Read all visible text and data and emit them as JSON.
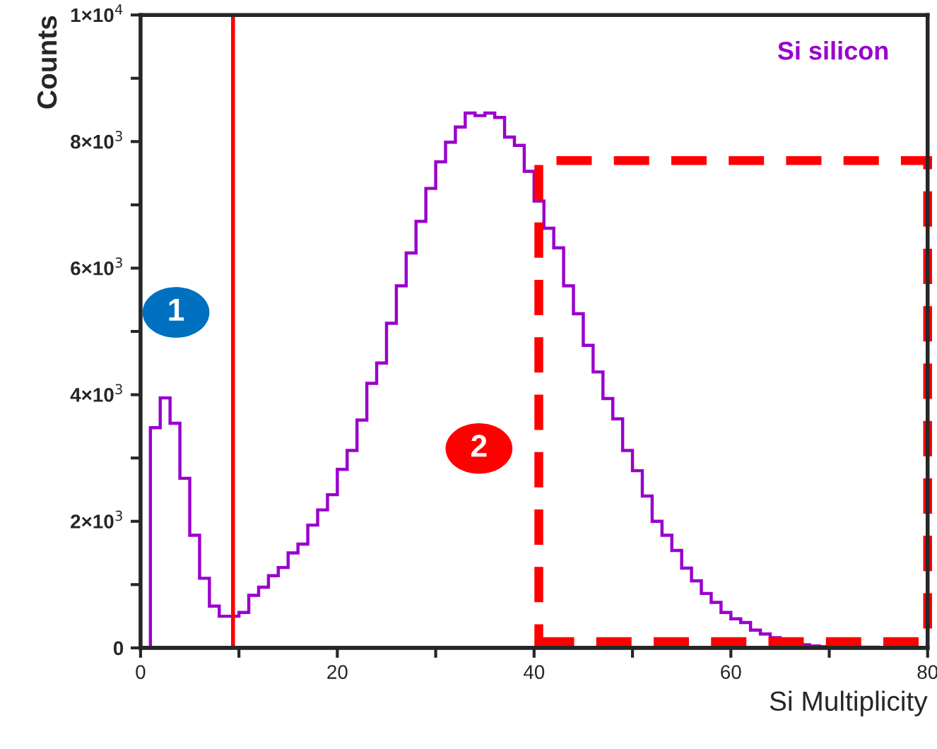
{
  "chart_data": {
    "type": "histogram",
    "xlabel": "Si Multiplicity",
    "ylabel": "Counts",
    "bins": [
      1,
      2,
      3,
      4,
      5,
      6,
      7,
      8,
      9,
      10,
      11,
      12,
      13,
      14,
      15,
      16,
      17,
      18,
      19,
      20,
      21,
      22,
      23,
      24,
      25,
      26,
      27,
      28,
      29,
      30,
      31,
      32,
      33,
      34,
      35,
      36,
      37,
      38,
      39,
      40,
      41,
      42,
      43,
      44,
      45,
      46,
      47,
      48,
      49,
      50,
      51,
      52,
      53,
      54,
      55,
      56,
      57,
      58,
      59,
      60,
      61,
      62,
      63,
      64,
      65,
      66,
      67,
      68,
      69,
      70,
      71,
      72,
      73,
      74,
      75
    ],
    "series": [
      {
        "name": "Si silicon",
        "color": "#9900cc",
        "values": [
          3480,
          3950,
          3550,
          2680,
          1780,
          1100,
          660,
          500,
          500,
          560,
          830,
          960,
          1140,
          1270,
          1500,
          1640,
          1940,
          2180,
          2420,
          2820,
          3120,
          3600,
          4180,
          4500,
          5130,
          5720,
          6240,
          6740,
          7260,
          7680,
          7990,
          8230,
          8450,
          8410,
          8450,
          8380,
          8070,
          7940,
          7530,
          7060,
          6630,
          6320,
          5720,
          5280,
          4780,
          4360,
          3940,
          3620,
          3120,
          2800,
          2400,
          2000,
          1780,
          1540,
          1260,
          1060,
          860,
          720,
          560,
          460,
          400,
          280,
          220,
          160,
          130,
          70,
          50,
          30,
          20,
          20,
          10,
          10,
          10,
          10
        ]
      }
    ],
    "xlim": [
      0,
      80
    ],
    "xticks": [
      0,
      {
        "value": 10,
        "label": null
      },
      20,
      {
        "value": 30,
        "label": null
      },
      40,
      {
        "value": 50,
        "label": null
      },
      60,
      {
        "value": 70,
        "label": null
      },
      80
    ],
    "ylim": [
      0,
      10000
    ],
    "yticks": [
      {
        "value": 0,
        "label": "0"
      },
      {
        "value": 1000,
        "label": null
      },
      {
        "value": 2000,
        "label": "2×10$^{3}$"
      },
      {
        "value": 3000,
        "label": null
      },
      {
        "value": 4000,
        "label": "4×10$^{3}$"
      },
      {
        "value": 5000,
        "label": null
      },
      {
        "value": 6000,
        "label": "6×10$^{3}$"
      },
      {
        "value": 7000,
        "label": null
      },
      {
        "value": 8000,
        "label": "8×10$^{3}$"
      },
      {
        "value": 9000,
        "label": null
      },
      {
        "value": 10000,
        "label": "1×10$^{4}$"
      }
    ],
    "ref_lines": [
      {
        "axis": "x",
        "value": 9.4,
        "color": "#ff0000",
        "line_style": "solid"
      }
    ],
    "annotations": [
      "1",
      "2"
    ],
    "grid": false,
    "legend": false
  }
}
